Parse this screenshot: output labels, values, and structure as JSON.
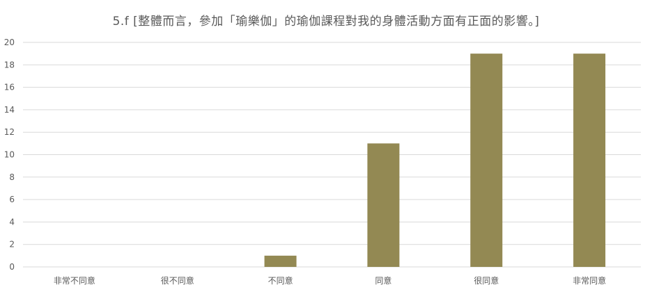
{
  "chart_data": {
    "type": "bar",
    "title": "5.f [整體而言，參加「瑜樂伽」的瑜伽課程對我的身體活動方面有正面的影響。]",
    "categories": [
      "非常不同意",
      "很不同意",
      "不同意",
      "同意",
      "很同意",
      "非常同意"
    ],
    "values": [
      0,
      0,
      1,
      11,
      19,
      19
    ],
    "ylim": [
      0,
      20
    ],
    "yticks": [
      0,
      2,
      4,
      6,
      8,
      10,
      12,
      14,
      16,
      18,
      20
    ],
    "xlabel": "",
    "ylabel": "",
    "grid": true,
    "legend": "none",
    "bar_color": "#938953",
    "grid_color": "#d9d9d9",
    "text_color": "#595959"
  }
}
